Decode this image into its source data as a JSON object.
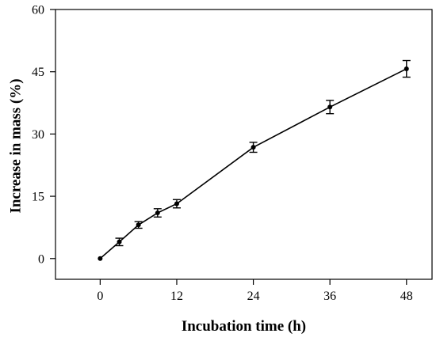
{
  "chart_data": {
    "type": "line",
    "title": "",
    "xlabel": "Incubation time (h)",
    "ylabel": "Increase in mass (%)",
    "xlim": [
      -7,
      52
    ],
    "ylim": [
      -5,
      60
    ],
    "x_ticks": [
      0,
      12,
      24,
      36,
      48
    ],
    "x_tick_labels": [
      "0",
      "12",
      "24",
      "36",
      "48"
    ],
    "y_ticks": [
      0,
      15,
      30,
      45,
      60
    ],
    "y_tick_labels": [
      "0",
      "15",
      "30",
      "45",
      "60"
    ],
    "grid": false,
    "legend": "none",
    "series": [
      {
        "x": [
          0,
          3,
          6,
          9,
          12,
          24,
          36,
          48
        ],
        "y": [
          0,
          4.0,
          8.1,
          11.0,
          13.2,
          26.8,
          36.5,
          45.7
        ],
        "error": [
          0,
          0.9,
          0.8,
          1.0,
          1.0,
          1.2,
          1.6,
          2.0
        ],
        "color": "#000000"
      }
    ]
  }
}
